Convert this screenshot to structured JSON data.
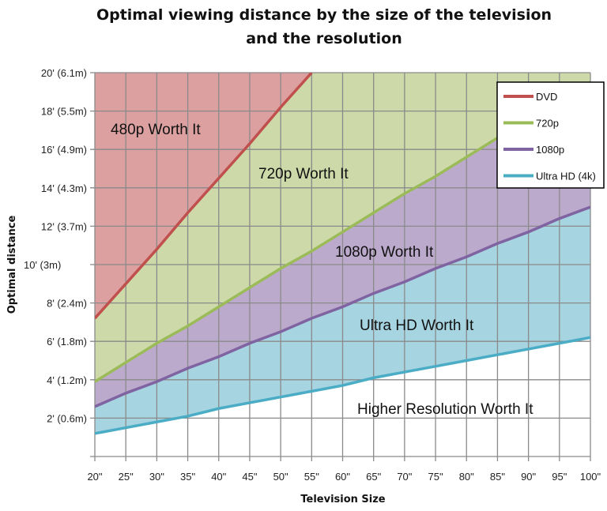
{
  "chart_data": {
    "type": "area",
    "title_lines": [
      "Optimal viewing distance by the size of the television",
      "and the resolution"
    ],
    "xlabel": "Television Size",
    "ylabel": "Optimal distance",
    "xlim": [
      20,
      100
    ],
    "ylim": [
      0,
      20
    ],
    "grid": true,
    "legend_position": "top-right",
    "x": [
      20,
      25,
      30,
      35,
      40,
      45,
      50,
      55,
      60,
      65,
      70,
      75,
      80,
      85,
      90,
      95,
      100
    ],
    "x_tick_labels": [
      "20\"",
      "25\"",
      "30\"",
      "35\"",
      "40\"",
      "45\"",
      "50\"",
      "55\"",
      "60\"",
      "65\"",
      "70\"",
      "75\"",
      "80\"",
      "85\"",
      "90\"",
      "95\"",
      "100\""
    ],
    "y_ticks": [
      2,
      4,
      6,
      8,
      10,
      12,
      14,
      16,
      18,
      20
    ],
    "y_tick_labels": [
      "2' (0.6m)",
      "4' (1.2m)",
      "6' (1.8m)",
      "8' (2.4m)",
      "10' (3m)",
      "12' (3.7m)",
      "14' (4.3m)",
      "16' (4.9m)",
      "18' (5.5m)",
      "20' (6.1m)"
    ],
    "series": [
      {
        "name": "DVD",
        "color": "#c0504d",
        "fill": "#dda0a0",
        "values": [
          7.2,
          9.0,
          10.8,
          12.7,
          14.5,
          16.3,
          18.2,
          20.0,
          null,
          null,
          null,
          null,
          null,
          null,
          null,
          null,
          null
        ]
      },
      {
        "name": "720p",
        "color": "#9bbb59",
        "fill": "#cdd9a8",
        "values": [
          3.9,
          4.9,
          5.9,
          6.8,
          7.8,
          8.8,
          9.8,
          10.7,
          11.7,
          12.7,
          13.7,
          14.6,
          15.6,
          16.6,
          17.6,
          18.5,
          19.5
        ]
      },
      {
        "name": "1080p",
        "color": "#8064a2",
        "fill": "#bcaacd",
        "values": [
          2.6,
          3.3,
          3.9,
          4.6,
          5.2,
          5.9,
          6.5,
          7.2,
          7.8,
          8.5,
          9.1,
          9.8,
          10.4,
          11.1,
          11.7,
          12.4,
          13.0
        ]
      },
      {
        "name": "Ultra HD (4k)",
        "color": "#4bacc6",
        "fill": "#a6d4e0",
        "values": [
          1.2,
          1.5,
          1.8,
          2.1,
          2.5,
          2.8,
          3.1,
          3.4,
          3.7,
          4.1,
          4.4,
          4.7,
          5.0,
          5.3,
          5.6,
          5.9,
          6.2
        ]
      }
    ],
    "region_labels": [
      "480p Worth It",
      "720p Worth It",
      "1080p Worth It",
      "Ultra HD Worth It",
      "Higher Resolution Worth It"
    ]
  }
}
